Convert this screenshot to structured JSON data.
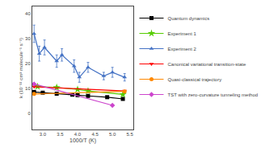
{
  "chart_data": {
    "type": "line",
    "xlabel": "1000/T (K)",
    "ylabel": "k (10⁻¹¹ cm³ molecule⁻¹ s⁻¹)",
    "xlim": [
      2.7,
      5.6
    ],
    "ylim": [
      -6.5,
      43
    ],
    "xticks": [
      {
        "value": 3.0,
        "label": "3.0"
      },
      3.5,
      {
        "value": 4.0,
        "label": "4.0"
      },
      4.5,
      {
        "value": 5.0,
        "label": "5.0"
      },
      5.5
    ],
    "yticks": [
      0,
      10,
      20,
      30,
      40
    ],
    "grid": false,
    "legend": "upper right",
    "series": [
      {
        "name": "Quantum dynamics",
        "color": "#000000",
        "marker": "square",
        "line_style": "solid",
        "x": [
          2.75,
          3.0,
          3.4,
          3.85,
          4.0,
          4.3,
          4.85,
          5.3
        ],
        "values": [
          8.6,
          8.3,
          7.9,
          7.5,
          7.3,
          7.0,
          6.5,
          5.8
        ]
      },
      {
        "name": "Experiment 1",
        "color": "#55cc00",
        "marker": "star",
        "line_style": "solid",
        "x": [
          2.85,
          3.4,
          4.0,
          4.3,
          5.3
        ],
        "values": [
          10.8,
          10.4,
          9.6,
          9.0,
          7.6
        ],
        "yerr": [
          0.45,
          0.5,
          0.4,
          0.3,
          0.3
        ]
      },
      {
        "name": "Experiment 2",
        "color": "#4472c4",
        "marker": "triangle-up",
        "line_style": "solid",
        "x": [
          2.75,
          2.9,
          3.05,
          3.4,
          3.55,
          3.9,
          4.05,
          4.3,
          4.75,
          5.0,
          5.35
        ],
        "values": [
          32.0,
          24.0,
          26.5,
          21.0,
          23.5,
          19.0,
          14.5,
          18.5,
          15.0,
          16.5,
          14.5
        ],
        "yerr": [
          3.5,
          3.0,
          3.0,
          2.5,
          2.5,
          2.5,
          2.0,
          2.0,
          1.5,
          2.0,
          1.5
        ]
      },
      {
        "name": "Canonical variational transition-state",
        "color": "#ff0000",
        "marker": "triangle-down",
        "line_style": "solid",
        "x": [
          2.75,
          5.35
        ],
        "values": [
          10.7,
          9.0
        ]
      },
      {
        "name": "Quasi-classical trajectory",
        "color": "#ff8800",
        "marker": "circle",
        "line_style": "solid",
        "x": [
          2.75,
          5.35
        ],
        "values": [
          7.8,
          8.8
        ]
      },
      {
        "name": "TST with zero-curvature tunneling method",
        "color": "#cc44cc",
        "marker": "diamond",
        "line_style": "solid",
        "x": [
          2.75,
          5.0
        ],
        "values": [
          11.8,
          3.2
        ]
      }
    ]
  }
}
